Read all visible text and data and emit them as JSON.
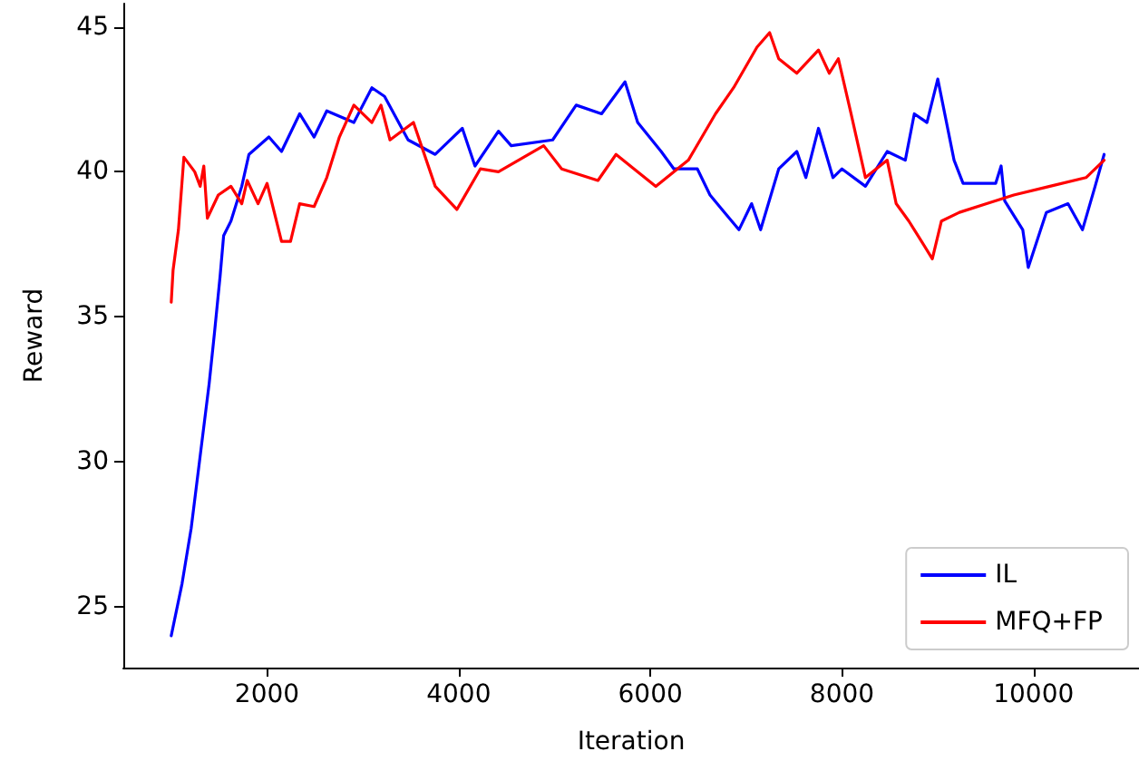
{
  "chart_data": {
    "type": "line",
    "xlabel": "Iteration",
    "ylabel": "Reward",
    "xlim": [
      500,
      11100
    ],
    "ylim": [
      22.9,
      45.8
    ],
    "xticks": [
      2000,
      4000,
      6000,
      8000,
      10000
    ],
    "yticks": [
      25,
      30,
      35,
      40,
      45
    ],
    "grid": false,
    "legend": "bottom right",
    "line_style": "solid",
    "marker": "none",
    "series": [
      {
        "name": "IL",
        "color": "#0000ff",
        "x": [
          1000,
          1113,
          1208,
          1302,
          1396,
          1453,
          1510,
          1547,
          1623,
          1736,
          1811,
          2019,
          2151,
          2340,
          2491,
          2623,
          2906,
          3094,
          3226,
          3472,
          3755,
          4038,
          4170,
          4415,
          4548,
          4981,
          5226,
          5491,
          5736,
          5868,
          6113,
          6246,
          6491,
          6623,
          6774,
          6925,
          7057,
          7151,
          7340,
          7529,
          7623,
          7755,
          7906,
          8000,
          8245,
          8472,
          8661,
          8755,
          8887,
          9000,
          9170,
          9264,
          9604,
          9661,
          9698,
          9887,
          9944,
          10133,
          10359,
          10510,
          10642,
          10736
        ],
        "values": [
          24.0,
          25.8,
          27.7,
          30.2,
          32.7,
          34.5,
          36.4,
          37.8,
          38.3,
          39.5,
          40.6,
          41.2,
          40.7,
          42.0,
          41.2,
          42.1,
          41.7,
          42.9,
          42.6,
          41.1,
          40.6,
          41.5,
          40.2,
          41.4,
          40.9,
          41.1,
          42.3,
          42.0,
          43.1,
          41.7,
          40.7,
          40.1,
          40.1,
          39.2,
          38.6,
          38.0,
          38.9,
          38.0,
          40.1,
          40.7,
          39.8,
          41.5,
          39.8,
          40.1,
          39.5,
          40.7,
          40.4,
          42.0,
          41.7,
          43.2,
          40.4,
          39.6,
          39.6,
          40.2,
          39.0,
          38.0,
          36.7,
          38.6,
          38.9,
          38.0,
          39.5,
          40.6
        ]
      },
      {
        "name": "MFQ+FP",
        "color": "#ff0000",
        "x": [
          1000,
          1019,
          1075,
          1132,
          1245,
          1302,
          1340,
          1377,
          1491,
          1623,
          1736,
          1793,
          1906,
          2000,
          2151,
          2245,
          2340,
          2491,
          2623,
          2755,
          2906,
          3094,
          3189,
          3283,
          3528,
          3755,
          3981,
          4226,
          4415,
          4887,
          5075,
          5453,
          5642,
          5830,
          6057,
          6397,
          6680,
          6869,
          7113,
          7245,
          7340,
          7529,
          7755,
          7868,
          7962,
          8095,
          8245,
          8472,
          8566,
          8698,
          8755,
          8943,
          9038,
          9226,
          9510,
          9793,
          10170,
          10547,
          10736
        ],
        "values": [
          35.5,
          36.6,
          38.0,
          40.5,
          40.0,
          39.5,
          40.2,
          38.4,
          39.2,
          39.5,
          38.9,
          39.7,
          38.9,
          39.6,
          37.6,
          37.6,
          38.9,
          38.8,
          39.8,
          41.2,
          42.3,
          41.7,
          42.3,
          41.1,
          41.7,
          39.5,
          38.7,
          40.1,
          40.0,
          40.9,
          40.1,
          39.7,
          40.6,
          40.1,
          39.5,
          40.4,
          42.0,
          42.9,
          44.3,
          44.8,
          43.9,
          43.4,
          44.2,
          43.4,
          43.9,
          42.0,
          39.8,
          40.4,
          38.9,
          38.3,
          38.0,
          37.0,
          38.3,
          38.6,
          38.9,
          39.2,
          39.5,
          39.8,
          40.4
        ]
      }
    ]
  }
}
